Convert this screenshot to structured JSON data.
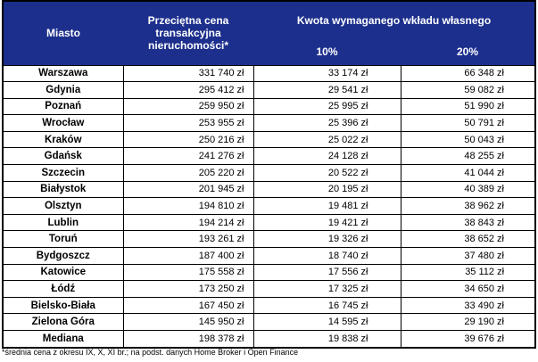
{
  "header": {
    "city": "Miasto",
    "price": "Przeciętna cena transakcyjna nieruchomości*",
    "contribution": "Kwota wymaganego wkładu własnego",
    "pct10": "10%",
    "pct20": "20%"
  },
  "table": {
    "rows": [
      [
        "Warszawa",
        "331 740 zł",
        "33 174 zł",
        "66 348 zł"
      ],
      [
        "Gdynia",
        "295 412 zł",
        "29 541 zł",
        "59 082 zł"
      ],
      [
        "Poznań",
        "259 950 zł",
        "25 995 zł",
        "51 990 zł"
      ],
      [
        "Wrocław",
        "253 955 zł",
        "25 396 zł",
        "50 791 zł"
      ],
      [
        "Kraków",
        "250 216 zł",
        "25 022 zł",
        "50 043 zł"
      ],
      [
        "Gdańsk",
        "241 276 zł",
        "24 128 zł",
        "48 255 zł"
      ],
      [
        "Szczecin",
        "205 220 zł",
        "20 522 zł",
        "41 044 zł"
      ],
      [
        "Białystok",
        "201 945 zł",
        "20 195 zł",
        "40 389 zł"
      ],
      [
        "Olsztyn",
        "194 810 zł",
        "19 481 zł",
        "38 962 zł"
      ],
      [
        "Lublin",
        "194 214 zł",
        "19 421 zł",
        "38 843 zł"
      ],
      [
        "Toruń",
        "193 261 zł",
        "19 326 zł",
        "38 652 zł"
      ],
      [
        "Bydgoszcz",
        "187 400 zł",
        "18 740 zł",
        "37 480 zł"
      ],
      [
        "Katowice",
        "175 558 zł",
        "17 556 zł",
        "35 112 zł"
      ],
      [
        "Łódź",
        "173 250 zł",
        "17 325 zł",
        "34 650 zł"
      ],
      [
        "Bielsko-Biała",
        "167 450 zł",
        "16 745 zł",
        "33 490 zł"
      ],
      [
        "Zielona Góra",
        "145 950 zł",
        "14 595 zł",
        "29 190 zł"
      ],
      [
        "Mediana",
        "198 378 zł",
        "19 838 zł",
        "39 676 zł"
      ]
    ]
  },
  "footnote": "*średnia cena z okresu IX, X, XI br.; na podst. danych Home Broker i Open Finance"
}
